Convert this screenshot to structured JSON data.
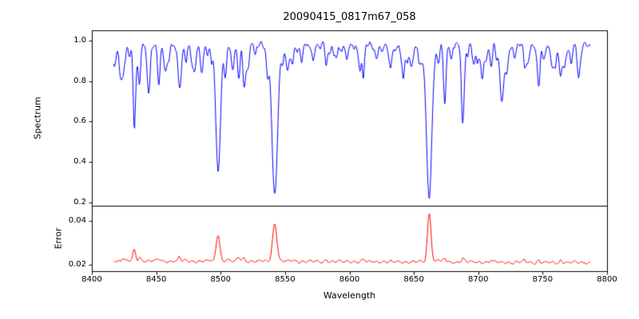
{
  "figure": {
    "title": "20090415_0817m67_058",
    "xlabel": "Wavelength",
    "background": "#ffffff",
    "axis_color": "#000000"
  },
  "chart_data": [
    {
      "type": "line",
      "name": "spectrum-panel",
      "ylabel": "Spectrum",
      "line_color": "#0000ff",
      "xlim": [
        8400,
        8800
      ],
      "ylim": [
        0.185,
        1.05
      ],
      "ytick_values": [
        0.2,
        0.4,
        0.6,
        0.8,
        1.0
      ],
      "ytick_labels": [
        "0.2",
        "0.4",
        "0.6",
        "0.8",
        "1.0"
      ],
      "x_data_range": [
        8417,
        8787
      ],
      "continuum": 0.975,
      "noise": {
        "seed": 12345,
        "amplitude": 0.011,
        "minor_line_count": 80,
        "minor_depth_range": [
          0.02,
          0.09
        ],
        "minor_width_range": [
          0.6,
          1.5
        ]
      },
      "line_columns": [
        "center",
        "depth",
        "width"
      ],
      "absorption_lines": [
        [
          8424,
          0.09,
          1.0
        ],
        [
          8429,
          0.05,
          0.8
        ],
        [
          8433,
          0.32,
          1.0
        ],
        [
          8437,
          0.16,
          0.9
        ],
        [
          8443,
          0.06,
          0.8
        ],
        [
          8452,
          0.1,
          0.9
        ],
        [
          8460,
          0.07,
          0.9
        ],
        [
          8468,
          0.2,
          1.0
        ],
        [
          8473,
          0.08,
          0.8
        ],
        [
          8480,
          0.05,
          0.8
        ],
        [
          8490,
          0.06,
          0.8
        ],
        [
          8498,
          0.57,
          1.8
        ],
        [
          8504,
          0.1,
          0.9
        ],
        [
          8514,
          0.16,
          1.0
        ],
        [
          8518,
          0.14,
          0.9
        ],
        [
          8527,
          0.05,
          0.8
        ],
        [
          8536,
          0.07,
          0.9
        ],
        [
          8542,
          0.73,
          2.2
        ],
        [
          8548,
          0.07,
          0.9
        ],
        [
          8556,
          0.06,
          0.8
        ],
        [
          8563,
          0.07,
          0.9
        ],
        [
          8572,
          0.08,
          0.9
        ],
        [
          8582,
          0.1,
          0.9
        ],
        [
          8590,
          0.06,
          0.8
        ],
        [
          8598,
          0.07,
          0.9
        ],
        [
          8611,
          0.09,
          0.9
        ],
        [
          8621,
          0.07,
          0.9
        ],
        [
          8632,
          0.06,
          0.8
        ],
        [
          8642,
          0.05,
          0.8
        ],
        [
          8648,
          0.07,
          0.9
        ],
        [
          8662,
          0.72,
          2.0
        ],
        [
          8669,
          0.08,
          0.9
        ],
        [
          8674,
          0.27,
          1.0
        ],
        [
          8679,
          0.08,
          0.8
        ],
        [
          8688,
          0.33,
          1.1
        ],
        [
          8697,
          0.09,
          0.9
        ],
        [
          8710,
          0.1,
          0.9
        ],
        [
          8718,
          0.08,
          0.9
        ],
        [
          8728,
          0.07,
          0.9
        ],
        [
          8736,
          0.09,
          0.9
        ],
        [
          8747,
          0.1,
          0.9
        ],
        [
          8757,
          0.07,
          0.9
        ],
        [
          8764,
          0.12,
          0.9
        ],
        [
          8772,
          0.08,
          0.9
        ],
        [
          8778,
          0.1,
          0.9
        ]
      ]
    },
    {
      "type": "line",
      "name": "error-panel",
      "ylabel": "Error",
      "line_color": "#ff0000",
      "xlim": [
        8400,
        8800
      ],
      "ylim": [
        0.017,
        0.047
      ],
      "ytick_values": [
        0.02,
        0.04
      ],
      "ytick_labels": [
        "0.02",
        "0.04"
      ],
      "xtick_values": [
        8400,
        8450,
        8500,
        8550,
        8600,
        8650,
        8700,
        8750,
        8800
      ],
      "xtick_labels": [
        "8400",
        "8450",
        "8500",
        "8550",
        "8600",
        "8650",
        "8700",
        "8750",
        "8800"
      ],
      "x_data_range": [
        8417,
        8787
      ],
      "baseline_start": 0.0218,
      "baseline_end": 0.0209,
      "noise": {
        "seed": 999,
        "amplitude": 0.0005
      },
      "peak_columns": [
        "center",
        "height",
        "width"
      ],
      "peaks": [
        [
          8424,
          0.0015,
          1.0
        ],
        [
          8433,
          0.0048,
          1.0
        ],
        [
          8437,
          0.0018,
          0.9
        ],
        [
          8452,
          0.001,
          0.9
        ],
        [
          8468,
          0.0018,
          1.0
        ],
        [
          8498,
          0.0125,
          1.4
        ],
        [
          8505,
          0.001,
          0.8
        ],
        [
          8514,
          0.0017,
          1.0
        ],
        [
          8518,
          0.0014,
          0.9
        ],
        [
          8542,
          0.0172,
          1.7
        ],
        [
          8556,
          0.0008,
          0.8
        ],
        [
          8582,
          0.0012,
          0.9
        ],
        [
          8611,
          0.001,
          0.9
        ],
        [
          8662,
          0.0225,
          1.4
        ],
        [
          8669,
          0.0016,
          0.9
        ],
        [
          8674,
          0.0018,
          0.9
        ],
        [
          8688,
          0.002,
          1.0
        ],
        [
          8710,
          0.001,
          0.9
        ],
        [
          8736,
          0.0008,
          0.8
        ],
        [
          8747,
          0.0009,
          0.9
        ],
        [
          8764,
          0.0012,
          0.9
        ]
      ]
    }
  ]
}
